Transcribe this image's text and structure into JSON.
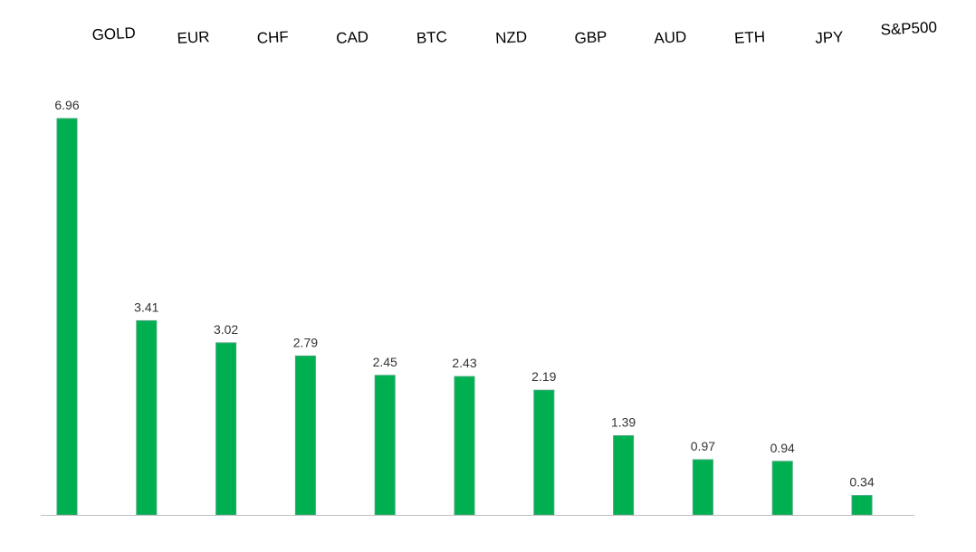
{
  "chart_data": {
    "type": "bar",
    "categories": [
      "GOLD",
      "EUR",
      "CHF",
      "CAD",
      "BTC",
      "NZD",
      "GBP",
      "AUD",
      "ETH",
      "JPY",
      "S&P500"
    ],
    "values": [
      6.96,
      3.41,
      3.02,
      2.79,
      2.45,
      2.43,
      2.19,
      1.39,
      0.97,
      0.94,
      0.34
    ],
    "value_labels": [
      "6.96",
      "3.41",
      "3.02",
      "2.79",
      "2.45",
      "2.43",
      "2.19",
      "1.39",
      "0.97",
      "0.94",
      "0.34"
    ],
    "ylim": [
      0,
      7.0
    ],
    "grid": false,
    "legend": "none",
    "category_label_position": "top",
    "bar_color": "#00b050"
  }
}
